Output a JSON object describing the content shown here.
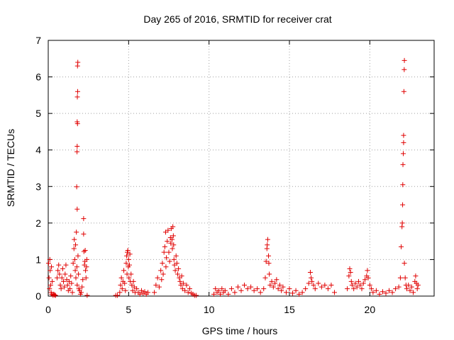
{
  "chart_data": {
    "type": "scatter",
    "title": "Day 265 of 2016, SRMTID for receiver crat",
    "xlabel": "GPS time / hours",
    "ylabel": "SRMTID / TECUs",
    "xlim": [
      0,
      24
    ],
    "ylim": [
      0,
      7
    ],
    "xticks": [
      0,
      5,
      10,
      15,
      20
    ],
    "yticks": [
      0,
      1,
      2,
      3,
      4,
      5,
      6,
      7
    ],
    "grid": true,
    "marker": "+",
    "color": "#e00000",
    "series": [
      {
        "name": "SRMTID",
        "points": [
          [
            0.02,
            0.9
          ],
          [
            0.05,
            0.5
          ],
          [
            0.08,
            0.2
          ],
          [
            0.1,
            1.0
          ],
          [
            0.12,
            0.7
          ],
          [
            0.15,
            0.3
          ],
          [
            0.18,
            0.1
          ],
          [
            0.2,
            0.8
          ],
          [
            0.22,
            0.05
          ],
          [
            0.25,
            0.4
          ],
          [
            0.3,
            0.02
          ],
          [
            0.35,
            0.05
          ],
          [
            0.4,
            0.03
          ],
          [
            0.45,
            0.02
          ],
          [
            0.55,
            0.5
          ],
          [
            0.6,
            0.7
          ],
          [
            0.65,
            0.85
          ],
          [
            0.7,
            0.6
          ],
          [
            0.75,
            0.3
          ],
          [
            0.8,
            0.2
          ],
          [
            0.85,
            0.5
          ],
          [
            0.9,
            0.75
          ],
          [
            0.95,
            0.4
          ],
          [
            1.0,
            0.25
          ],
          [
            1.05,
            0.6
          ],
          [
            1.1,
            0.85
          ],
          [
            1.15,
            0.45
          ],
          [
            1.2,
            0.3
          ],
          [
            1.25,
            0.15
          ],
          [
            1.3,
            0.4
          ],
          [
            1.35,
            0.2
          ],
          [
            1.4,
            0.55
          ],
          [
            1.45,
            0.35
          ],
          [
            1.5,
            0.1
          ],
          [
            1.55,
            0.9
          ],
          [
            1.6,
            1.3
          ],
          [
            1.62,
            1.55
          ],
          [
            1.65,
            1.0
          ],
          [
            1.68,
            0.7
          ],
          [
            1.7,
            1.4
          ],
          [
            1.72,
            0.5
          ],
          [
            1.75,
            1.75
          ],
          [
            1.78,
            0.8
          ],
          [
            1.8,
            0.3
          ],
          [
            1.8,
            2.38
          ],
          [
            1.77,
            2.99
          ],
          [
            1.79,
            3.95
          ],
          [
            1.8,
            4.1
          ],
          [
            1.82,
            4.72
          ],
          [
            1.8,
            4.77
          ],
          [
            1.81,
            5.45
          ],
          [
            1.83,
            5.6
          ],
          [
            1.82,
            6.3
          ],
          [
            1.84,
            6.4
          ],
          [
            1.85,
            1.1
          ],
          [
            1.88,
            0.6
          ],
          [
            1.9,
            0.2
          ],
          [
            1.95,
            0.15
          ],
          [
            2.0,
            0.05
          ],
          [
            2.05,
            0.1
          ],
          [
            2.1,
            0.25
          ],
          [
            2.15,
            0.45
          ],
          [
            2.2,
            2.12
          ],
          [
            2.2,
            1.7
          ],
          [
            2.22,
            1.22
          ],
          [
            2.25,
            0.85
          ],
          [
            2.28,
            0.95
          ],
          [
            2.3,
            1.25
          ],
          [
            2.32,
            0.7
          ],
          [
            2.35,
            0.5
          ],
          [
            2.38,
            0.8
          ],
          [
            2.4,
            1.0
          ],
          [
            2.42,
            0.02
          ],
          [
            4.2,
            0.02
          ],
          [
            4.3,
            0.02
          ],
          [
            4.45,
            0.1
          ],
          [
            4.5,
            0.3
          ],
          [
            4.55,
            0.5
          ],
          [
            4.6,
            0.2
          ],
          [
            4.65,
            0.4
          ],
          [
            4.7,
            0.7
          ],
          [
            4.75,
            0.35
          ],
          [
            4.8,
            0.15
          ],
          [
            4.85,
            0.9
          ],
          [
            4.88,
            1.1
          ],
          [
            4.9,
            0.6
          ],
          [
            4.92,
            1.2
          ],
          [
            4.95,
            1.25
          ],
          [
            4.98,
            0.8
          ],
          [
            5.0,
            1.0
          ],
          [
            5.02,
            0.5
          ],
          [
            5.05,
            0.85
          ],
          [
            5.08,
            1.15
          ],
          [
            5.1,
            0.4
          ],
          [
            5.15,
            0.6
          ],
          [
            5.2,
            0.3
          ],
          [
            5.25,
            0.15
          ],
          [
            5.3,
            0.4
          ],
          [
            5.35,
            0.25
          ],
          [
            5.4,
            0.1
          ],
          [
            5.5,
            0.2
          ],
          [
            5.6,
            0.1
          ],
          [
            5.7,
            0.05
          ],
          [
            5.8,
            0.15
          ],
          [
            5.9,
            0.08
          ],
          [
            6.0,
            0.12
          ],
          [
            6.1,
            0.05
          ],
          [
            6.2,
            0.1
          ],
          [
            6.6,
            0.1
          ],
          [
            6.7,
            0.3
          ],
          [
            6.8,
            0.5
          ],
          [
            6.9,
            0.25
          ],
          [
            7.0,
            0.7
          ],
          [
            7.05,
            0.45
          ],
          [
            7.1,
            0.9
          ],
          [
            7.15,
            0.6
          ],
          [
            7.2,
            1.2
          ],
          [
            7.25,
            1.35
          ],
          [
            7.3,
            1.75
          ],
          [
            7.32,
            0.8
          ],
          [
            7.35,
            1.05
          ],
          [
            7.4,
            1.5
          ],
          [
            7.45,
            1.8
          ],
          [
            7.5,
            1.2
          ],
          [
            7.55,
            0.95
          ],
          [
            7.6,
            1.6
          ],
          [
            7.62,
            1.45
          ],
          [
            7.65,
            1.85
          ],
          [
            7.7,
            1.55
          ],
          [
            7.72,
            1.3
          ],
          [
            7.75,
            1.9
          ],
          [
            7.78,
            1.65
          ],
          [
            7.8,
            1.4
          ],
          [
            7.82,
            1.0
          ],
          [
            7.85,
            0.85
          ],
          [
            7.9,
            0.7
          ],
          [
            7.95,
            1.1
          ],
          [
            8.0,
            0.9
          ],
          [
            8.05,
            0.6
          ],
          [
            8.1,
            0.75
          ],
          [
            8.15,
            0.5
          ],
          [
            8.2,
            0.4
          ],
          [
            8.25,
            0.3
          ],
          [
            8.3,
            0.55
          ],
          [
            8.35,
            0.2
          ],
          [
            8.4,
            0.35
          ],
          [
            8.5,
            0.15
          ],
          [
            8.6,
            0.3
          ],
          [
            8.7,
            0.1
          ],
          [
            8.8,
            0.2
          ],
          [
            8.9,
            0.08
          ],
          [
            9.0,
            0.05
          ],
          [
            9.1,
            0.02
          ],
          [
            9.2,
            0.02
          ],
          [
            10.3,
            0.05
          ],
          [
            10.4,
            0.2
          ],
          [
            10.5,
            0.1
          ],
          [
            10.6,
            0.15
          ],
          [
            10.7,
            0.05
          ],
          [
            10.8,
            0.2
          ],
          [
            10.9,
            0.1
          ],
          [
            11.0,
            0.15
          ],
          [
            11.2,
            0.05
          ],
          [
            11.4,
            0.2
          ],
          [
            11.6,
            0.1
          ],
          [
            11.8,
            0.25
          ],
          [
            12.0,
            0.15
          ],
          [
            12.2,
            0.3
          ],
          [
            12.4,
            0.2
          ],
          [
            12.6,
            0.25
          ],
          [
            12.8,
            0.15
          ],
          [
            13.0,
            0.2
          ],
          [
            13.2,
            0.1
          ],
          [
            13.4,
            0.2
          ],
          [
            13.5,
            0.5
          ],
          [
            13.55,
            0.95
          ],
          [
            13.6,
            1.3
          ],
          [
            13.62,
            1.4
          ],
          [
            13.65,
            1.55
          ],
          [
            13.7,
            1.1
          ],
          [
            13.72,
            0.9
          ],
          [
            13.75,
            0.6
          ],
          [
            13.8,
            0.3
          ],
          [
            13.9,
            0.4
          ],
          [
            14.0,
            0.25
          ],
          [
            14.1,
            0.35
          ],
          [
            14.2,
            0.45
          ],
          [
            14.3,
            0.2
          ],
          [
            14.4,
            0.3
          ],
          [
            14.5,
            0.15
          ],
          [
            14.6,
            0.25
          ],
          [
            14.8,
            0.1
          ],
          [
            15.0,
            0.2
          ],
          [
            15.2,
            0.08
          ],
          [
            15.4,
            0.15
          ],
          [
            15.6,
            0.05
          ],
          [
            15.8,
            0.1
          ],
          [
            16.0,
            0.2
          ],
          [
            16.2,
            0.35
          ],
          [
            16.3,
            0.65
          ],
          [
            16.35,
            0.5
          ],
          [
            16.4,
            0.4
          ],
          [
            16.5,
            0.3
          ],
          [
            16.6,
            0.2
          ],
          [
            16.8,
            0.35
          ],
          [
            17.0,
            0.25
          ],
          [
            17.2,
            0.3
          ],
          [
            17.4,
            0.2
          ],
          [
            17.6,
            0.3
          ],
          [
            17.8,
            0.1
          ],
          [
            18.6,
            0.2
          ],
          [
            18.7,
            0.55
          ],
          [
            18.75,
            0.75
          ],
          [
            18.8,
            0.65
          ],
          [
            18.85,
            0.4
          ],
          [
            18.9,
            0.3
          ],
          [
            19.0,
            0.2
          ],
          [
            19.1,
            0.35
          ],
          [
            19.2,
            0.25
          ],
          [
            19.3,
            0.4
          ],
          [
            19.4,
            0.3
          ],
          [
            19.5,
            0.2
          ],
          [
            19.6,
            0.35
          ],
          [
            19.7,
            0.45
          ],
          [
            19.8,
            0.55
          ],
          [
            19.85,
            0.7
          ],
          [
            19.9,
            0.5
          ],
          [
            20.0,
            0.3
          ],
          [
            20.1,
            0.2
          ],
          [
            20.2,
            0.1
          ],
          [
            20.4,
            0.15
          ],
          [
            20.6,
            0.05
          ],
          [
            20.8,
            0.12
          ],
          [
            21.0,
            0.08
          ],
          [
            21.2,
            0.15
          ],
          [
            21.4,
            0.1
          ],
          [
            21.6,
            0.2
          ],
          [
            21.8,
            0.25
          ],
          [
            21.9,
            0.5
          ],
          [
            21.95,
            1.35
          ],
          [
            22.0,
            1.9
          ],
          [
            22.02,
            2.0
          ],
          [
            22.04,
            2.5
          ],
          [
            22.05,
            3.05
          ],
          [
            22.06,
            3.6
          ],
          [
            22.08,
            3.9
          ],
          [
            22.1,
            4.2
          ],
          [
            22.1,
            4.4
          ],
          [
            22.12,
            5.6
          ],
          [
            22.14,
            6.2
          ],
          [
            22.15,
            6.45
          ],
          [
            22.15,
            0.9
          ],
          [
            22.2,
            0.5
          ],
          [
            22.25,
            0.3
          ],
          [
            22.3,
            0.2
          ],
          [
            22.4,
            0.3
          ],
          [
            22.5,
            0.15
          ],
          [
            22.6,
            0.25
          ],
          [
            22.7,
            0.1
          ],
          [
            22.8,
            0.4
          ],
          [
            22.85,
            0.55
          ],
          [
            22.9,
            0.35
          ],
          [
            22.95,
            0.2
          ],
          [
            23.0,
            0.3
          ]
        ]
      }
    ]
  }
}
